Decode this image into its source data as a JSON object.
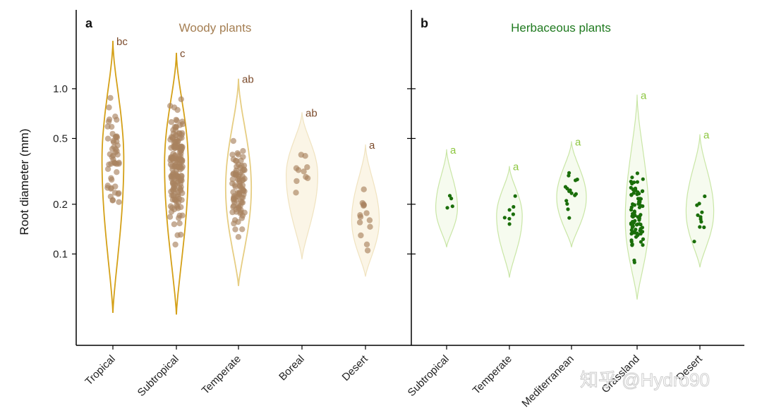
{
  "watermark": "知乎 @Hydro90",
  "chart_data": {
    "type": "violin",
    "ylabel": "Root diameter (mm)",
    "yscale": "log",
    "ylim": [
      0.028,
      3.0
    ],
    "yticks": [
      0.1,
      0.2,
      0.5,
      1.0
    ],
    "ytick_labels": [
      "0.1",
      "0.2",
      "0.5",
      "1.0"
    ],
    "grid": false,
    "panels": [
      {
        "letter": "a",
        "title": "Woody plants",
        "title_color": "#a47e52",
        "groups": [
          {
            "category": "Tropical",
            "sig": "bc",
            "min": 0.044,
            "max": 1.95,
            "peak": 0.37,
            "width": 0.55,
            "n": 52,
            "violin_color": "#d4a017",
            "fill": "none",
            "point_color": "#a98360",
            "sig_color": "#7b4a2a"
          },
          {
            "category": "Subtropical",
            "sig": "c",
            "min": 0.043,
            "max": 1.65,
            "peak": 0.35,
            "width": 0.6,
            "n": 170,
            "violin_color": "#d4a017",
            "fill": "none",
            "point_color": "#a98360",
            "sig_color": "#7b4a2a"
          },
          {
            "category": "Temperate",
            "sig": "ab",
            "min": 0.064,
            "max": 1.15,
            "peak": 0.25,
            "width": 0.65,
            "n": 90,
            "violin_color": "#e6cd82",
            "fill": "none",
            "point_color": "#a98360",
            "sig_color": "#7b4a2a"
          },
          {
            "category": "Boreal",
            "sig": "ab",
            "min": 0.093,
            "max": 0.72,
            "peak": 0.3,
            "width": 0.8,
            "n": 10,
            "violin_color": "#f0e3c0",
            "fill": "#fbf5e6",
            "point_color": "#a98360",
            "sig_color": "#7b4a2a"
          },
          {
            "category": "Desert",
            "sig": "a",
            "min": 0.073,
            "max": 0.46,
            "peak": 0.16,
            "width": 0.7,
            "n": 14,
            "violin_color": "#f0e3c0",
            "fill": "#fbf5e6",
            "point_color": "#a98360",
            "sig_color": "#7b4a2a"
          }
        ]
      },
      {
        "letter": "b",
        "title": "Herbaceous plants",
        "title_color": "#1f7a1f",
        "groups": [
          {
            "category": "Subtropical",
            "sig": "a",
            "min": 0.11,
            "max": 0.43,
            "peak": 0.19,
            "width": 0.55,
            "n": 4,
            "violin_color": "#c9e6a6",
            "fill": "#f6fbef",
            "point_color": "#1a6e0a",
            "sig_color": "#8cc63f"
          },
          {
            "category": "Temperate",
            "sig": "a",
            "min": 0.072,
            "max": 0.34,
            "peak": 0.17,
            "width": 0.65,
            "n": 7,
            "violin_color": "#c9e6a6",
            "fill": "#f6fbef",
            "point_color": "#1a6e0a",
            "sig_color": "#8cc63f"
          },
          {
            "category": "Mediterranean",
            "sig": "a",
            "min": 0.11,
            "max": 0.48,
            "peak": 0.22,
            "width": 0.75,
            "n": 15,
            "violin_color": "#c9e6a6",
            "fill": "#f6fbef",
            "point_color": "#1a6e0a",
            "sig_color": "#8cc63f"
          },
          {
            "category": "Grassland",
            "sig": "a",
            "min": 0.053,
            "max": 0.92,
            "peak": 0.16,
            "width": 0.6,
            "n": 90,
            "violin_color": "#c9e6a6",
            "fill": "#f6fbef",
            "point_color": "#1a6e0a",
            "sig_color": "#8cc63f"
          },
          {
            "category": "Desert",
            "sig": "a",
            "min": 0.083,
            "max": 0.53,
            "peak": 0.18,
            "width": 0.7,
            "n": 11,
            "violin_color": "#c9e6a6",
            "fill": "#f6fbef",
            "point_color": "#1a6e0a",
            "sig_color": "#8cc63f"
          }
        ]
      }
    ]
  }
}
